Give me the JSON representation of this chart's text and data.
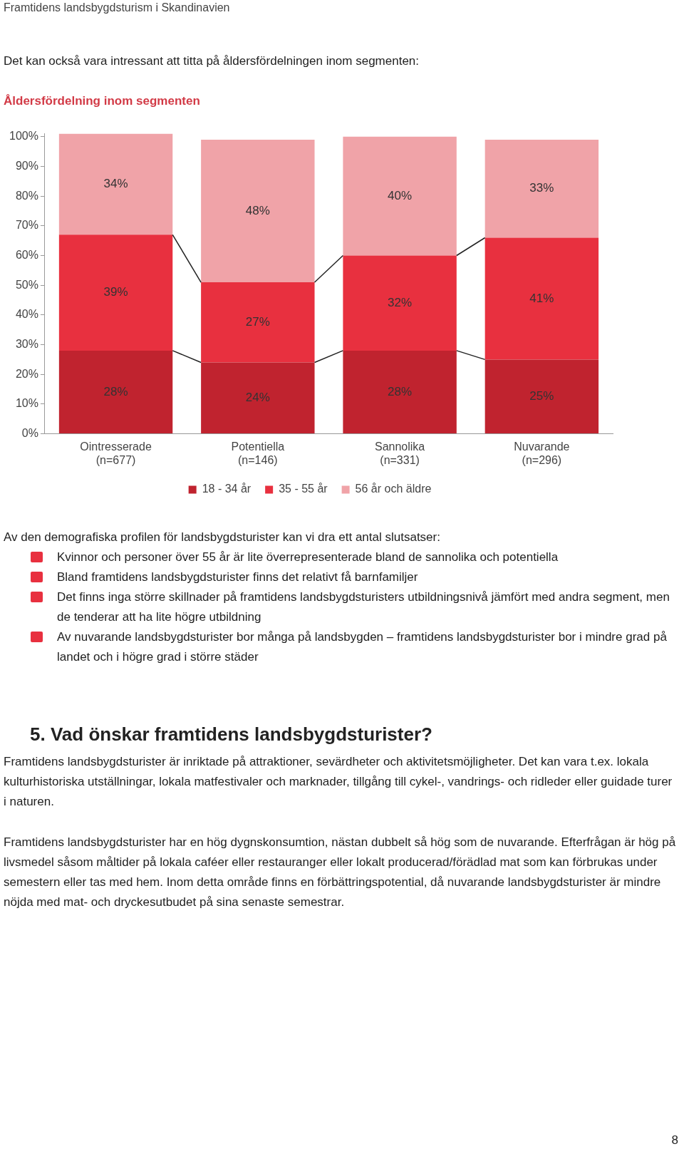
{
  "chart_data": {
    "type": "bar",
    "stacked": true,
    "title": "Åldersfördelning inom segmenten",
    "categories": [
      "Ointresserade\n(n=677)",
      "Potentiella\n(n=146)",
      "Sannolika\n(n=331)",
      "Nuvarande\n(n=296)"
    ],
    "series": [
      {
        "name": "18 - 34 år",
        "color": "#c0232f",
        "values": [
          28,
          24,
          28,
          25
        ],
        "value_labels": [
          "28%",
          "24%",
          "28%",
          "25%"
        ]
      },
      {
        "name": "35 - 55 år",
        "color": "#e8303f",
        "values": [
          39,
          27,
          32,
          41
        ],
        "value_labels": [
          "39%",
          "27%",
          "32%",
          "41%"
        ]
      },
      {
        "name": "56 år och äldre",
        "color": "#f0a3a8",
        "values": [
          34,
          48,
          40,
          33
        ],
        "value_labels": [
          "34%",
          "48%",
          "40%",
          "33%"
        ]
      }
    ],
    "ylim": [
      0,
      101
    ],
    "yticks": [
      {
        "value": 0,
        "label": "0%"
      },
      {
        "value": 10,
        "label": "10%"
      },
      {
        "value": 20,
        "label": "20%"
      },
      {
        "value": 30,
        "label": "30%"
      },
      {
        "value": 40,
        "label": "40%"
      },
      {
        "value": 50,
        "label": "50%"
      },
      {
        "value": 60,
        "label": "60%"
      },
      {
        "value": 70,
        "label": "70%"
      },
      {
        "value": 80,
        "label": "80%"
      },
      {
        "value": 90,
        "label": "90%"
      },
      {
        "value": 100,
        "label": "100%"
      }
    ],
    "grid": false,
    "legend": "bottom",
    "annotations": [
      "Framtidens landsbygdsturism i Skandinavien",
      "Det kan också vara intressant att titta på åldersfördelningen inom segmenten:",
      "Av den demografiska profilen för landsbygdsturister kan vi dra ett antal slutsatser:",
      "Kvinnor och personer över 55 år är lite överrepresenterade bland de sannolika och potentiella",
      "Bland framtidens landsbygdsturister finns det relativt få barnfamiljer",
      "Det finns inga större skillnader på framtidens landsbygdsturisters utbildningsnivå jämfört med andra segment, men de tenderar att ha lite högre utbildning",
      "Av nuvarande landsbygdsturister bor många på landsbygden – framtidens landsbygdsturister bor i mindre grad på landet och i högre grad i större städer",
      "5. Vad önskar framtidens landsbygdsturister?",
      "Framtidens landsbygdsturister är inriktade på attraktioner, sevärdheter och aktivitetsmöjligheter. Det kan vara t.ex. lokala kulturhistoriska utställningar, lokala matfestivaler och marknader, tillgång till cykel-, vandrings- och ridleder eller guidade turer i naturen.",
      "Framtidens landsbygdsturister har en hög dygnskonsumtion, nästan dubbelt så hög som de nuvarande. Efterfrågan är hög på livsmedel såsom måltider på lokala caféer eller restauranger eller lokalt producerad/förädlad mat som kan förbrukas under semestern eller tas med hem. Inom detta område finns en förbättringspotential, då nuvarande landsbygdsturister är mindre nöjda med mat- och dryckesutbudet på sina senaste semestrar.",
      "8"
    ]
  }
}
